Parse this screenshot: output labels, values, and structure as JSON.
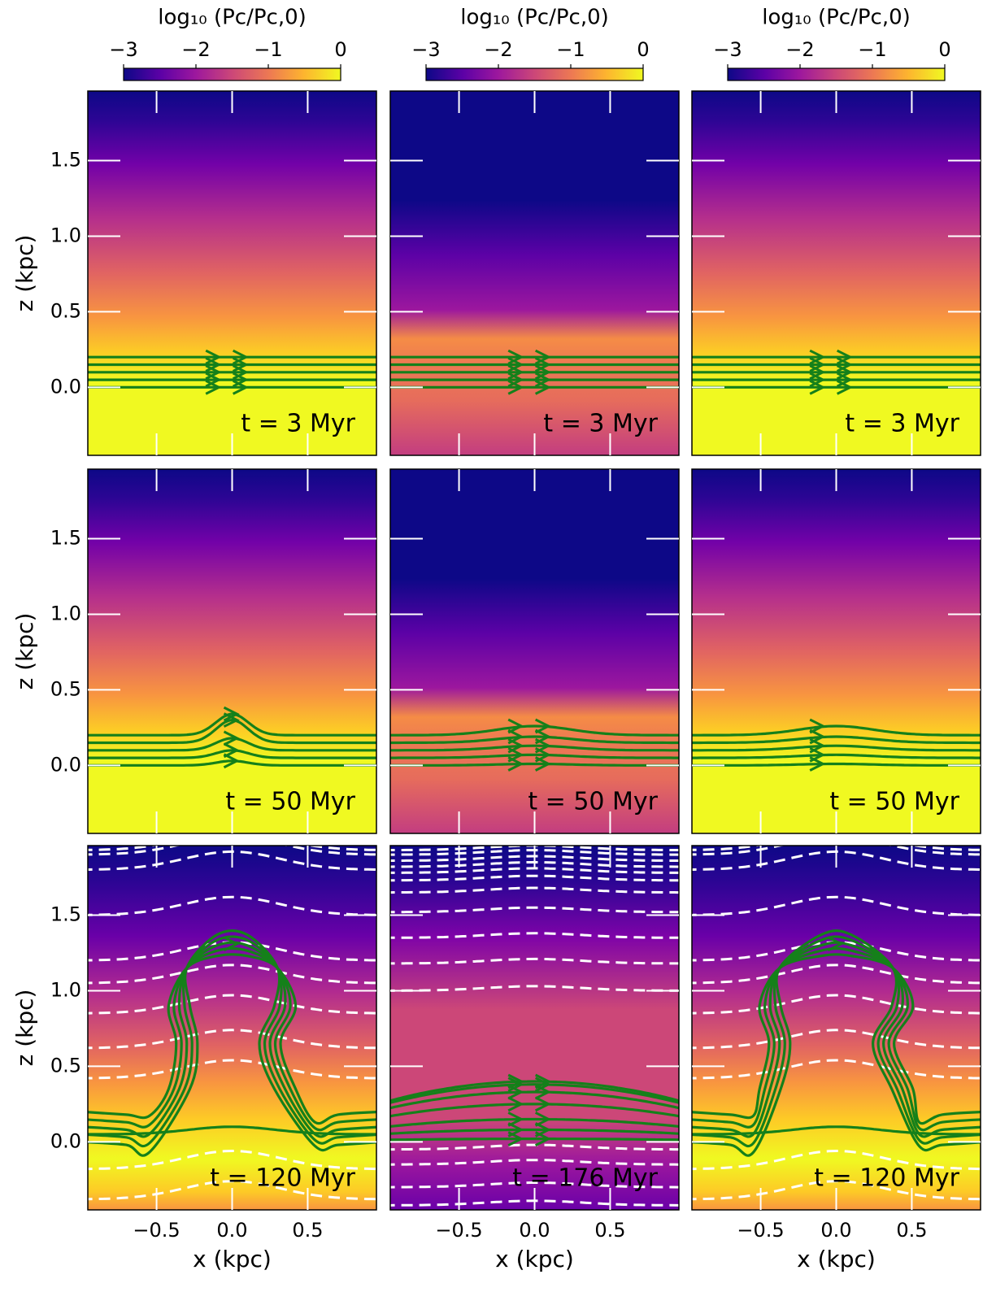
{
  "chart_data": {
    "type": "image-grid",
    "colorbar": {
      "label": "log₁₀ (Pc/Pc,0)",
      "lim": [
        -3,
        0
      ],
      "ticks": [
        {
          "value": -3,
          "label": "−3"
        },
        {
          "value": -2,
          "label": "−2"
        },
        {
          "value": -1,
          "label": "−1"
        },
        0
      ]
    },
    "xlabel": "x (kpc)",
    "ylabel": "z (kpc)",
    "xlim": [
      -0.955,
      0.955
    ],
    "ylim": [
      -0.45,
      1.96
    ],
    "xticks": [
      {
        "value": -0.5,
        "label": "−0.5"
      },
      {
        "value": 0,
        "label": "0.0"
      },
      0.5
    ],
    "yticks": [
      {
        "value": 0,
        "label": "0.0"
      },
      0.5,
      {
        "value": 1,
        "label": "1.0"
      },
      1.5
    ],
    "panels": [
      {
        "annotation": "t =  3 Myr"
      },
      {
        "annotation": "t =  3 Myr"
      },
      {
        "annotation": "t =  3 Myr"
      },
      {
        "annotation": "t = 50 Myr"
      },
      {
        "annotation": "t = 50 Myr"
      },
      {
        "annotation": "t = 50 Myr"
      },
      {
        "annotation": "t = 120 Myr"
      },
      {
        "annotation": "t = 176 Myr"
      },
      {
        "annotation": "t = 120 Myr"
      }
    ]
  }
}
